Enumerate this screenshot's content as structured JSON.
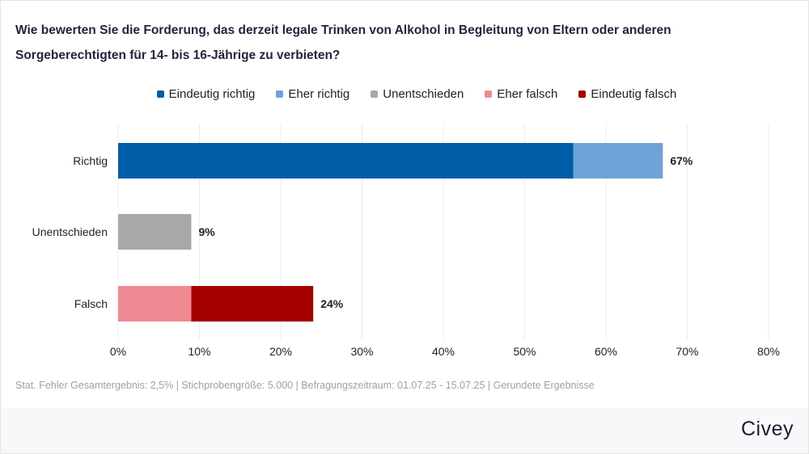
{
  "chart_data": {
    "type": "bar",
    "orientation": "horizontal",
    "stacked": true,
    "title": "Wie bewerten Sie die Forderung, das derzeit legale Trinken von Alkohol in Begleitung von Eltern oder anderen Sorgeberechtigten für 14- bis 16-Jährige zu verbieten?",
    "categories": [
      "Richtig",
      "Unentschieden",
      "Falsch"
    ],
    "series": [
      {
        "name": "Eindeutig richtig",
        "color": "#005ea8",
        "values": [
          56,
          0,
          0
        ]
      },
      {
        "name": "Eher richtig",
        "color": "#6ea2d8",
        "values": [
          11,
          0,
          0
        ]
      },
      {
        "name": "Unentschieden",
        "color": "#a8a8a8",
        "values": [
          0,
          9,
          0
        ]
      },
      {
        "name": "Eher falsch",
        "color": "#f08a92",
        "values": [
          0,
          0,
          9
        ]
      },
      {
        "name": "Eindeutig falsch",
        "color": "#a50000",
        "values": [
          0,
          0,
          15
        ]
      }
    ],
    "total_labels": [
      "67%",
      "9%",
      "24%"
    ],
    "xlim": [
      0,
      80
    ],
    "xticks": [
      "0%",
      "10%",
      "20%",
      "30%",
      "40%",
      "50%",
      "60%",
      "70%",
      "80%"
    ],
    "grid": true,
    "legend_position": "top"
  },
  "footnote": "Stat. Fehler Gesamtergebnis: 2,5% | Stichprobengröße: 5.000 | Befragungszeitraum: 01.07.25 - 15.07.25 | Gerundete Ergebnisse",
  "brand": "Civey"
}
